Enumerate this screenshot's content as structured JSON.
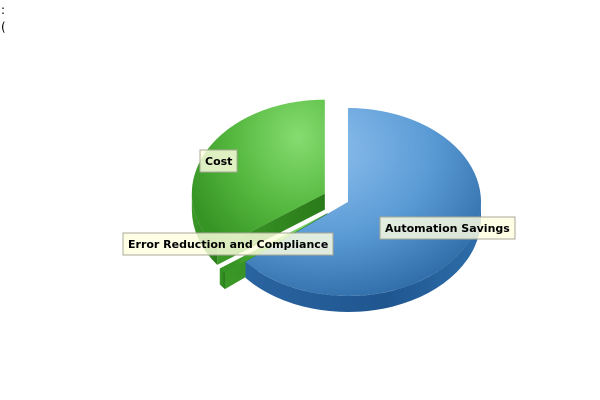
{
  "corner_text": [
    ":",
    "("
  ],
  "colors": {
    "blue_light": "#8ec0ee",
    "blue_mid": "#5b9bd5",
    "blue_dark": "#2d6aa6",
    "blue_side": "#245a91",
    "green_light": "#7fd66a",
    "green_mid": "#52b43c",
    "green_dark": "#3a9a26",
    "green_side": "#2f7d1f",
    "label_fill": "#ffffe0",
    "label_border": "#a8a896"
  },
  "chart_data": {
    "type": "pie",
    "style": "3d-exploded",
    "title": "",
    "legend": "none",
    "slices": [
      {
        "label": "Automation Savings",
        "value": 64,
        "color": "#5b9bd5"
      },
      {
        "label": "Error Reduction and Compliance",
        "value": 1,
        "color": "#52b43c"
      },
      {
        "label": "Cost",
        "value": 35,
        "color": "#52b43c"
      }
    ]
  }
}
